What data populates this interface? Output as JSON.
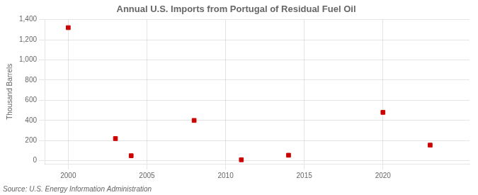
{
  "chart_data": {
    "type": "scatter",
    "title": "Annual U.S. Imports from Portugal of Residual Fuel Oil",
    "ylabel": "Thousand Barrels",
    "source": "Source: U.S. Energy Information Administration",
    "x": [
      2000,
      2003,
      2004,
      2008,
      2011,
      2014,
      2020,
      2023
    ],
    "values": [
      1320,
      220,
      50,
      400,
      10,
      55,
      480,
      155
    ],
    "color": "#cc0000",
    "marker": "square",
    "xlim": [
      1998.5,
      2025.5
    ],
    "xticks": [
      2000,
      2005,
      2010,
      2015,
      2020
    ],
    "ylim": [
      -30,
      1400
    ],
    "yticks": [
      0,
      200,
      400,
      600,
      800,
      {
        "value": 1000,
        "label": "1,000"
      },
      {
        "value": 1200,
        "label": "1,200"
      },
      {
        "value": 1400,
        "label": "1,400"
      }
    ],
    "grid": true
  }
}
